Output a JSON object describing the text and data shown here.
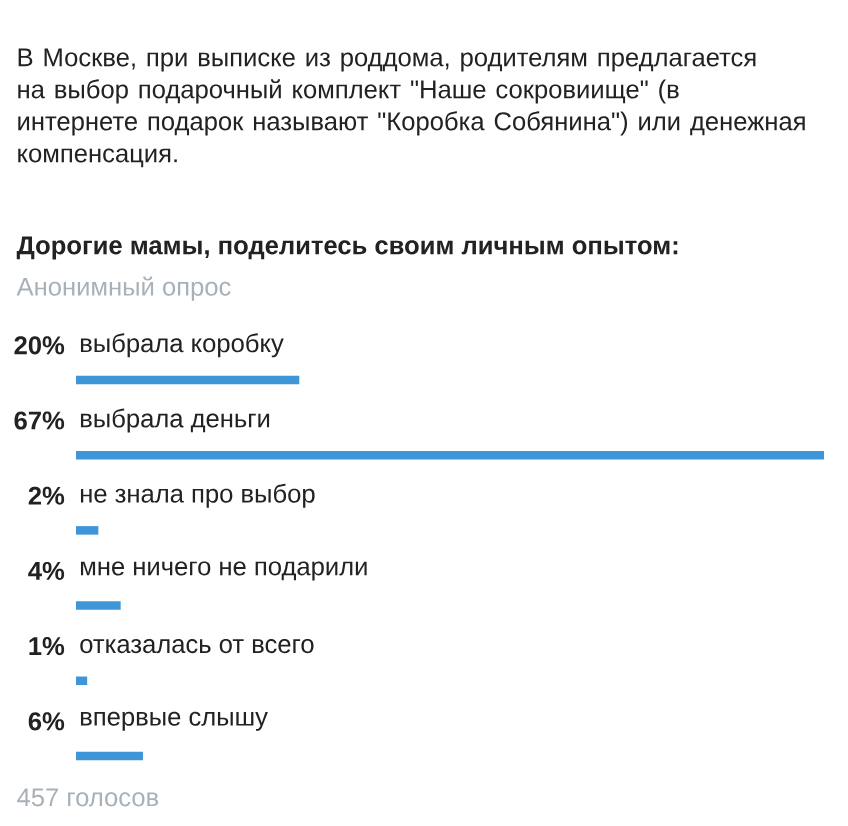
{
  "chart_data": {
    "type": "bar",
    "orientation": "horizontal",
    "title": "В Москве, при выписке из роддома, родителям предлагается на выбор подарочный комплект \"Наше сокровиище\" (в интернете подарок называют \"Коробка Собянина\") или денежная компенсация.",
    "subtitle": "Дорогие мамы, поделитесь своим личным опытом:",
    "annotations": [
      "Анонимный опрос",
      "457 голосов"
    ],
    "categories": [
      "выбрала коробку",
      "выбрала деньги",
      "не знала про выбор",
      "мне ничего не подарили",
      "отказалась от всего",
      "впервые слышу"
    ],
    "values": [
      20,
      67,
      2,
      4,
      1,
      6
    ],
    "value_labels": [
      "20%",
      "67%",
      "2%",
      "4%",
      "1%",
      "6%"
    ],
    "color": "#3e96d8"
  }
}
